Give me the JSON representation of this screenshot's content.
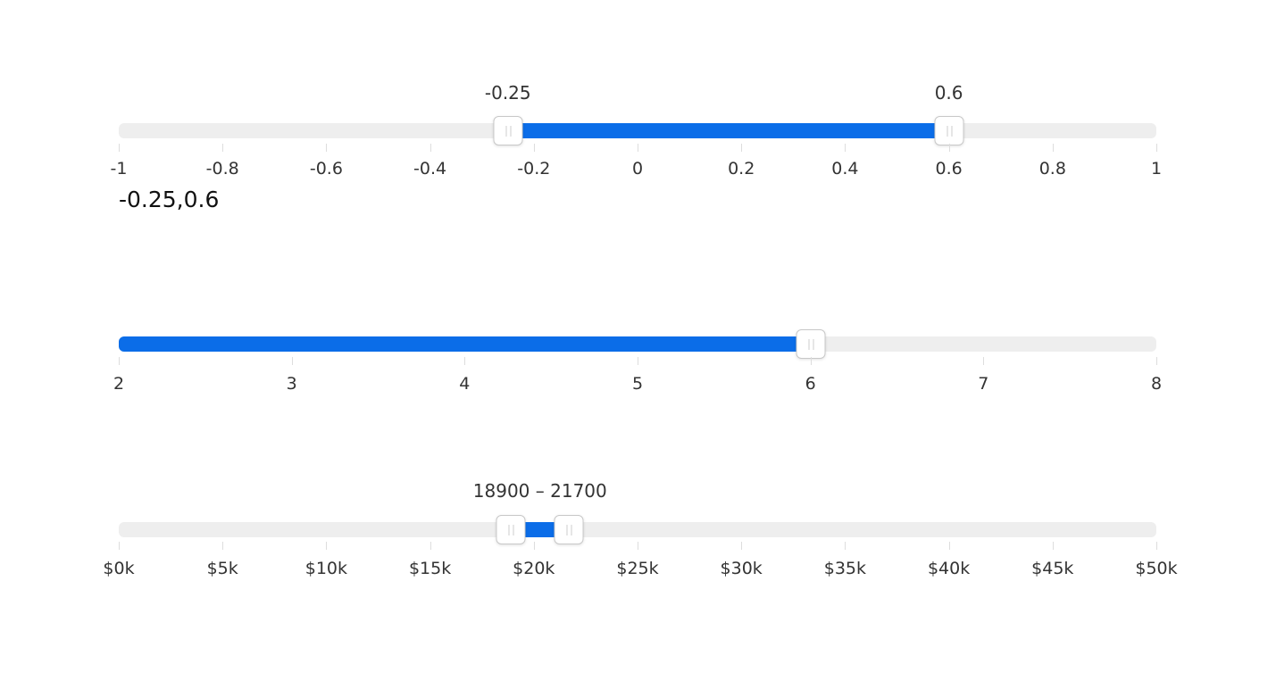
{
  "slider1": {
    "min": -1,
    "max": 1,
    "low": -0.25,
    "high": 0.6,
    "low_label": "-0.25",
    "high_label": "0.6",
    "ticks": [
      "-1",
      "-0.8",
      "-0.6",
      "-0.4",
      "-0.2",
      "0",
      "0.2",
      "0.4",
      "0.6",
      "0.8",
      "1"
    ],
    "readout": "-0.25,0.6"
  },
  "slider2": {
    "min": 2,
    "max": 8,
    "value": 6,
    "ticks": [
      "2",
      "3",
      "4",
      "5",
      "6",
      "7",
      "8"
    ]
  },
  "slider3": {
    "min": 0,
    "max": 50000,
    "low": 18900,
    "high": 21700,
    "range_label": "18900 – 21700",
    "ticks": [
      "$0k",
      "$5k",
      "$10k",
      "$15k",
      "$20k",
      "$25k",
      "$30k",
      "$35k",
      "$40k",
      "$45k",
      "$50k"
    ]
  },
  "colors": {
    "accent": "#0b6de8",
    "track": "#eeeeee"
  }
}
